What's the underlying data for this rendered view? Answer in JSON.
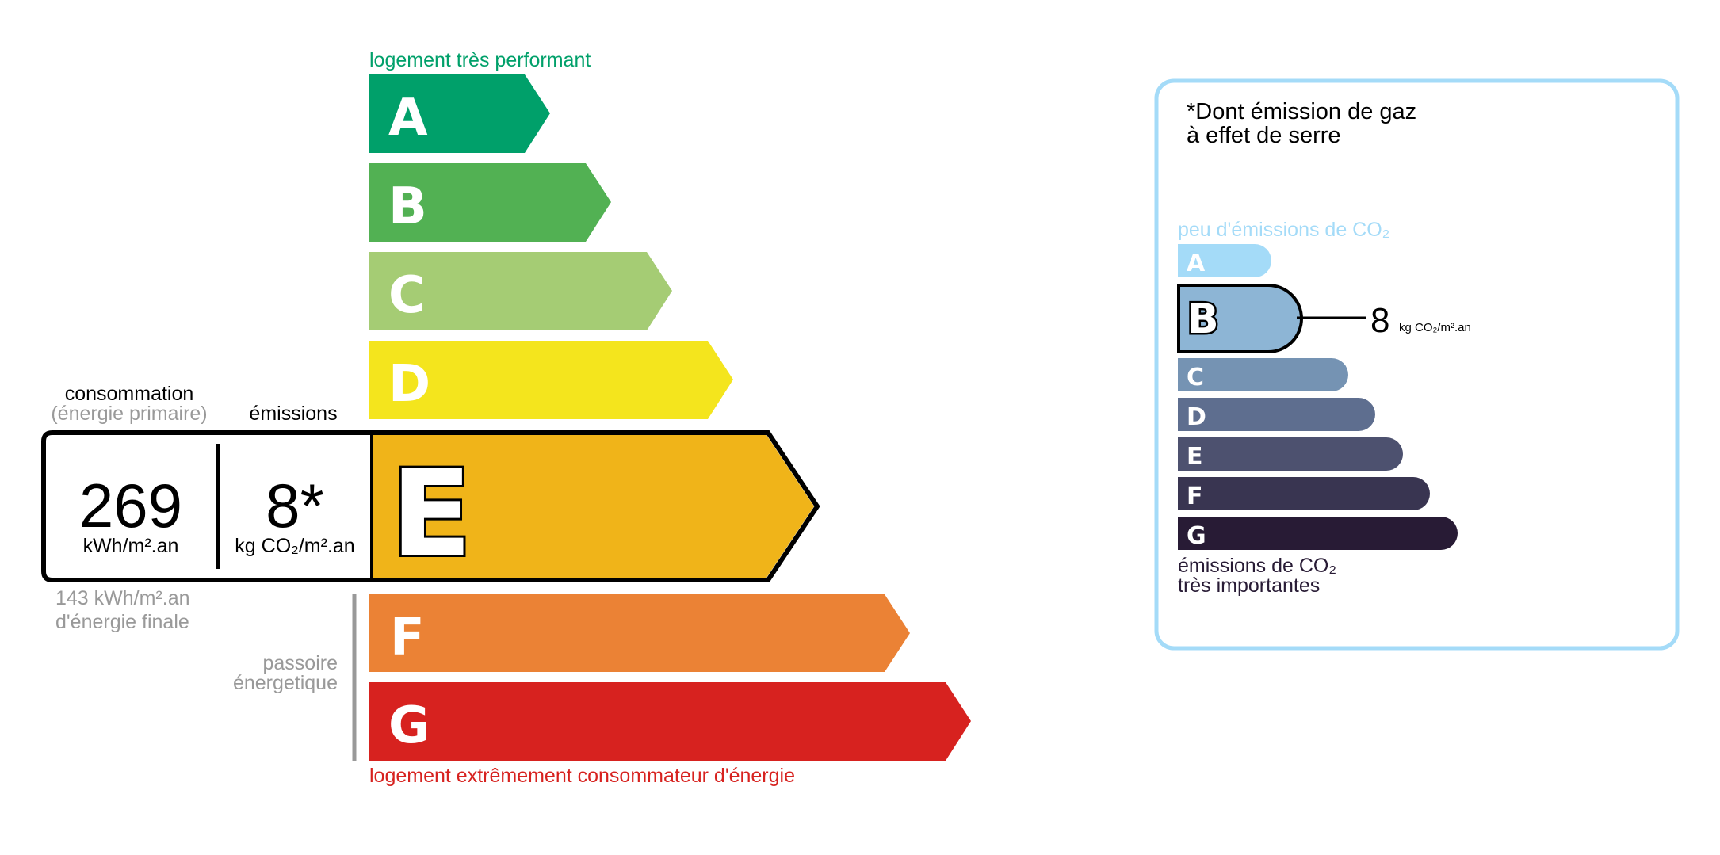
{
  "energy": {
    "top_label": "logement très performant",
    "bottom_label": "logement extrêmement consommateur d'énergie",
    "classes": [
      {
        "letter": "A",
        "color": "#00a06a"
      },
      {
        "letter": "B",
        "color": "#52b153"
      },
      {
        "letter": "C",
        "color": "#a5cc74"
      },
      {
        "letter": "D",
        "color": "#f4e51d"
      },
      {
        "letter": "E",
        "color": "#f0b419"
      },
      {
        "letter": "F",
        "color": "#eb8235"
      },
      {
        "letter": "G",
        "color": "#d7221f"
      }
    ],
    "current_class": "E",
    "consumption_label": "consommation",
    "consumption_sub": "(énergie primaire)",
    "emissions_label": "émissions",
    "consumption_value": "269",
    "consumption_unit": "kWh/m².an",
    "emissions_value": "8*",
    "emissions_unit": "kg CO₂/m².an",
    "final_energy_line1": "143 kWh/m².an",
    "final_energy_line2": "d'énergie finale",
    "passoire_line1": "passoire",
    "passoire_line2": "énergetique"
  },
  "ges": {
    "title_line1": "*Dont émission de gaz",
    "title_line2": "à effet de serre",
    "top_label": "peu d'émissions de CO₂",
    "bottom_line1": "émissions de CO₂",
    "bottom_line2": "très importantes",
    "classes": [
      {
        "letter": "A",
        "color": "#a4dbf8"
      },
      {
        "letter": "B",
        "color": "#8db5d5"
      },
      {
        "letter": "C",
        "color": "#7593b3"
      },
      {
        "letter": "D",
        "color": "#5e6e8f"
      },
      {
        "letter": "E",
        "color": "#4d516f"
      },
      {
        "letter": "F",
        "color": "#393551"
      },
      {
        "letter": "G",
        "color": "#281b35"
      }
    ],
    "current_class": "B",
    "value": "8",
    "unit": "kg CO₂/m².an",
    "border_color": "#a4dbf8"
  }
}
